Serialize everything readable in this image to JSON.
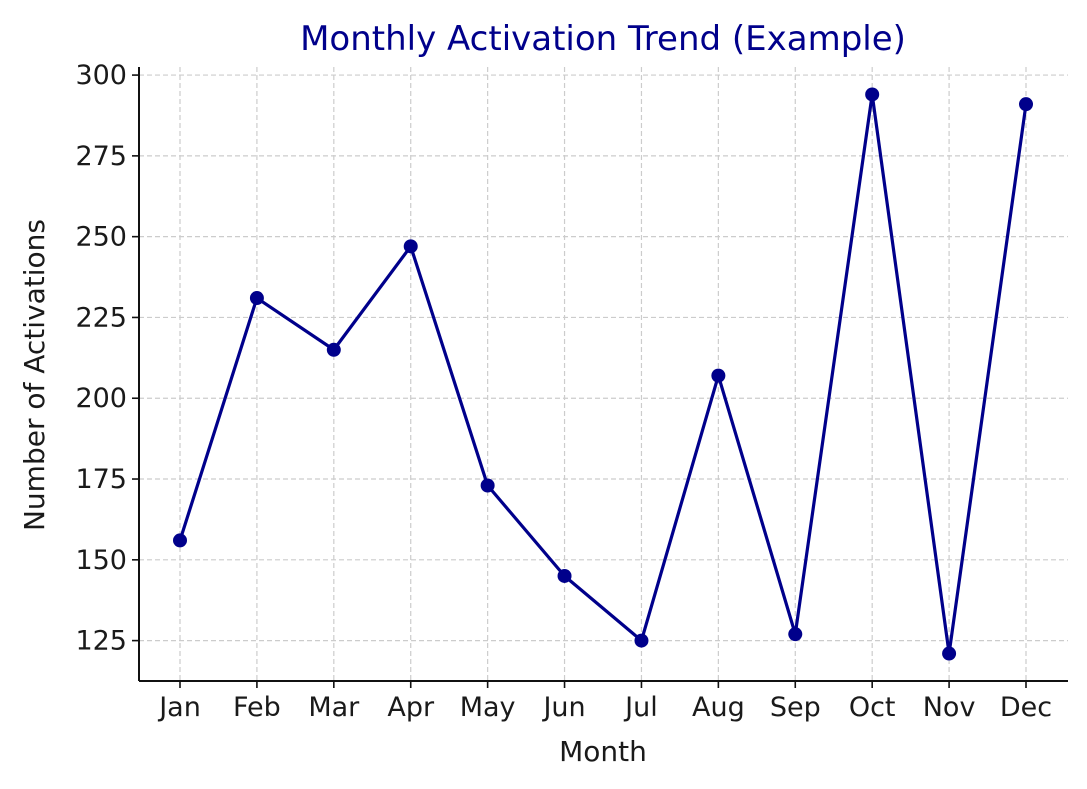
{
  "chart_data": {
    "type": "line",
    "title": "Monthly Activation Trend (Example)",
    "xlabel": "Month",
    "ylabel": "Number of Activations",
    "categories": [
      "Jan",
      "Feb",
      "Mar",
      "Apr",
      "May",
      "Jun",
      "Jul",
      "Aug",
      "Sep",
      "Oct",
      "Nov",
      "Dec"
    ],
    "values": [
      156,
      231,
      215,
      247,
      173,
      145,
      125,
      207,
      127,
      294,
      121,
      291
    ],
    "yticks": [
      125,
      150,
      175,
      200,
      225,
      250,
      275,
      300
    ],
    "ylim": [
      112.5,
      302.5
    ],
    "grid": true,
    "colors": {
      "line": "#00008b",
      "title": "#00008b"
    }
  }
}
